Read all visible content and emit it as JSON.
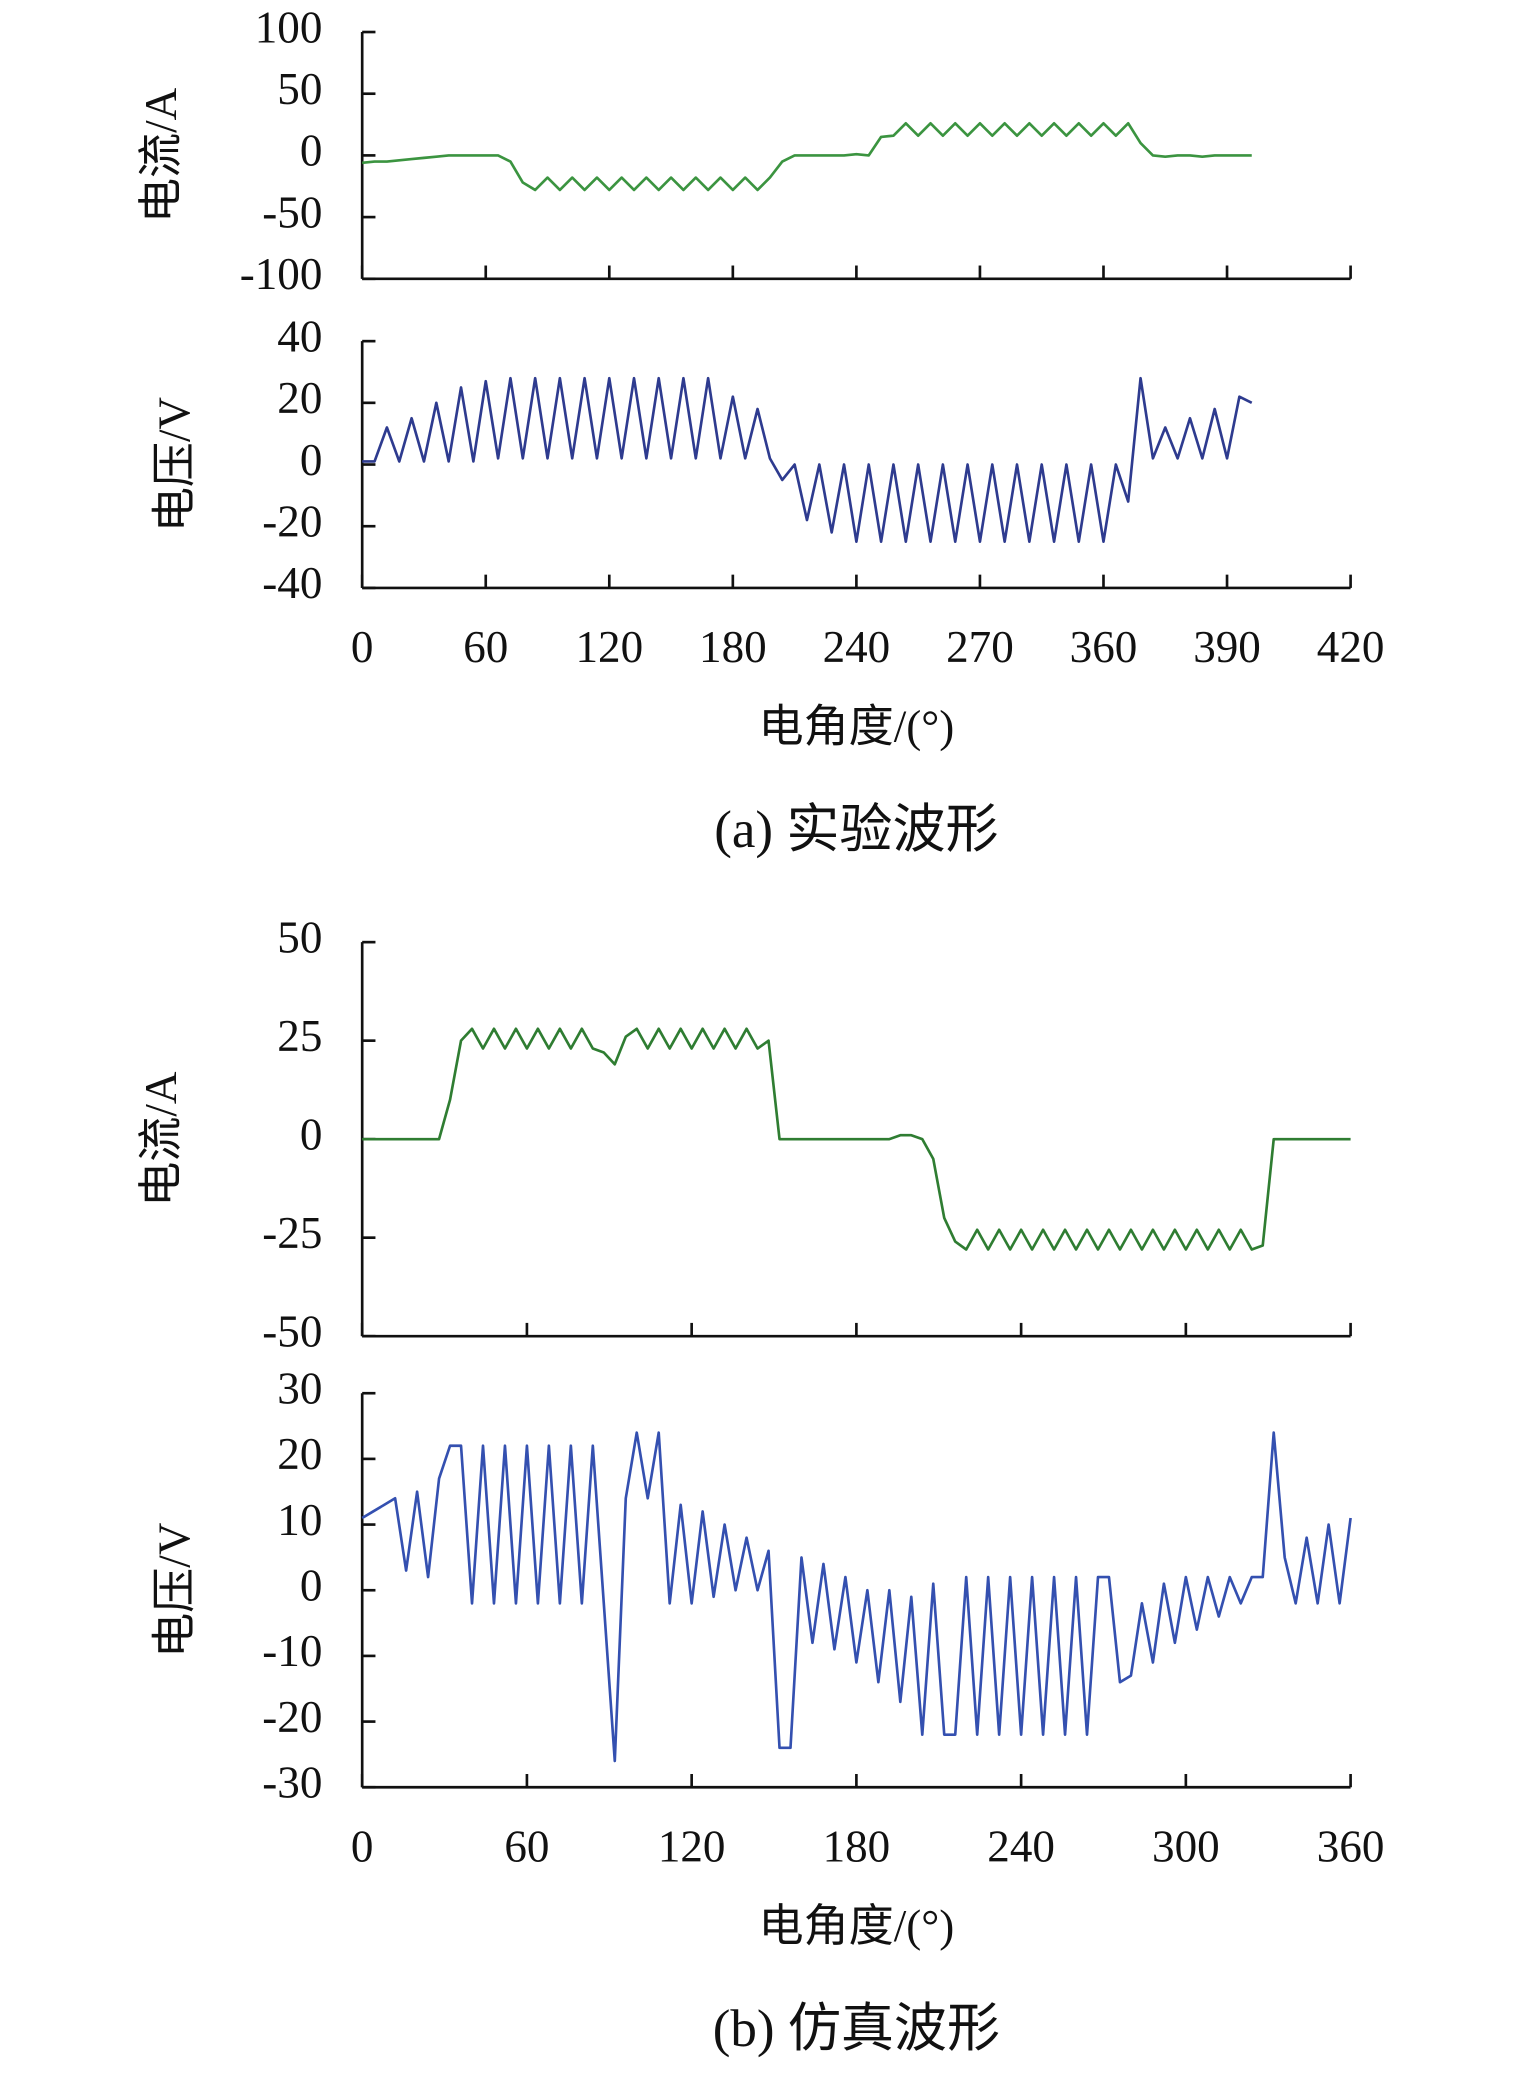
{
  "chart_data": [
    {
      "type": "line",
      "ylabel": "电流/A",
      "xlim": [
        0,
        8
      ],
      "xticks": [
        0,
        1,
        2,
        3,
        4,
        5,
        6,
        7,
        8
      ],
      "xticklabels": false,
      "ylim": [
        -100,
        100
      ],
      "yticks": [
        -100,
        -50,
        0,
        50,
        100
      ],
      "x": [
        0,
        0.1,
        0.2,
        0.3,
        0.4,
        0.5,
        0.6,
        0.7,
        0.8,
        0.9,
        1,
        1.1,
        1.2,
        1.3,
        1.4,
        1.5,
        1.6,
        1.7,
        1.8,
        1.9,
        2,
        2.1,
        2.2,
        2.3,
        2.4,
        2.5,
        2.6,
        2.7,
        2.8,
        2.9,
        3,
        3.1,
        3.2,
        3.3,
        3.4,
        3.5,
        3.6,
        3.7,
        3.8,
        3.9,
        4,
        4.1,
        4.2,
        4.3,
        4.4,
        4.5,
        4.6,
        4.7,
        4.8,
        4.9,
        5,
        5.1,
        5.2,
        5.3,
        5.4,
        5.5,
        5.6,
        5.7,
        5.8,
        5.9,
        6,
        6.1,
        6.2,
        6.3,
        6.4,
        6.5,
        6.6,
        6.7,
        6.8,
        6.9,
        7,
        7.1,
        7.2
      ],
      "series": [
        {
          "color": "#3b9440",
          "values": [
            -6,
            -5,
            -5,
            -4,
            -3,
            -2,
            -1,
            0,
            0,
            0,
            0,
            0,
            -5,
            -22,
            -28,
            -18,
            -28,
            -18,
            -28,
            -18,
            -28,
            -18,
            -28,
            -18,
            -28,
            -18,
            -28,
            -18,
            -28,
            -18,
            -28,
            -18,
            -28,
            -18,
            -5,
            0,
            0,
            0,
            0,
            0,
            1,
            0,
            15,
            16,
            26,
            16,
            26,
            16,
            26,
            16,
            26,
            16,
            26,
            16,
            26,
            16,
            26,
            16,
            26,
            16,
            26,
            16,
            26,
            10,
            0,
            -1,
            0,
            0,
            -1,
            0,
            0,
            0,
            0
          ]
        }
      ]
    },
    {
      "type": "line",
      "ylabel": "电压/V",
      "xlabel": "电角度/(°)",
      "caption": "(a) 实验波形",
      "xlim": [
        0,
        8
      ],
      "categories": [
        "0",
        "60",
        "120",
        "180",
        "240",
        "270",
        "360",
        "390",
        "420"
      ],
      "ylim": [
        -40,
        40
      ],
      "yticks": [
        -40,
        -20,
        0,
        20,
        40
      ],
      "x": [
        0,
        0.1,
        0.2,
        0.3,
        0.4,
        0.5,
        0.6,
        0.7,
        0.8,
        0.9,
        1,
        1.1,
        1.2,
        1.3,
        1.4,
        1.5,
        1.6,
        1.7,
        1.8,
        1.9,
        2,
        2.1,
        2.2,
        2.3,
        2.4,
        2.5,
        2.6,
        2.7,
        2.8,
        2.9,
        3,
        3.1,
        3.2,
        3.3,
        3.4,
        3.5,
        3.6,
        3.7,
        3.8,
        3.9,
        4,
        4.1,
        4.2,
        4.3,
        4.4,
        4.5,
        4.6,
        4.7,
        4.8,
        4.9,
        5,
        5.1,
        5.2,
        5.3,
        5.4,
        5.5,
        5.6,
        5.7,
        5.8,
        5.9,
        6,
        6.1,
        6.2,
        6.3,
        6.4,
        6.5,
        6.6,
        6.7,
        6.8,
        6.9,
        7,
        7.1,
        7.2
      ],
      "series": [
        {
          "color": "#2e3b8f",
          "values": [
            1,
            1,
            12,
            1,
            15,
            1,
            20,
            1,
            25,
            1,
            27,
            2,
            28,
            2,
            28,
            2,
            28,
            2,
            28,
            2,
            28,
            2,
            28,
            2,
            28,
            2,
            28,
            2,
            28,
            2,
            22,
            2,
            18,
            2,
            -5,
            0,
            -18,
            0,
            -22,
            0,
            -25,
            0,
            -25,
            0,
            -25,
            0,
            -25,
            0,
            -25,
            0,
            -25,
            0,
            -25,
            0,
            -25,
            0,
            -25,
            0,
            -25,
            0,
            -25,
            0,
            -12,
            28,
            2,
            12,
            2,
            15,
            2,
            18,
            2,
            22,
            20
          ]
        }
      ]
    },
    {
      "type": "line",
      "ylabel": "电流/A",
      "xlim": [
        0,
        360
      ],
      "xticks": [
        0,
        60,
        120,
        180,
        240,
        300,
        360
      ],
      "xticklabels": false,
      "ylim": [
        -50,
        50
      ],
      "yticks": [
        -50,
        -25,
        0,
        25,
        50
      ],
      "x": [
        0,
        4,
        8,
        12,
        16,
        20,
        24,
        28,
        32,
        36,
        40,
        44,
        48,
        52,
        56,
        60,
        64,
        68,
        72,
        76,
        80,
        84,
        88,
        92,
        96,
        100,
        104,
        108,
        112,
        116,
        120,
        124,
        128,
        132,
        136,
        140,
        144,
        148,
        152,
        156,
        160,
        164,
        168,
        172,
        176,
        180,
        184,
        188,
        192,
        196,
        200,
        204,
        208,
        212,
        216,
        220,
        224,
        228,
        232,
        236,
        240,
        244,
        248,
        252,
        256,
        260,
        264,
        268,
        272,
        276,
        280,
        284,
        288,
        292,
        296,
        300,
        304,
        308,
        312,
        316,
        320,
        324,
        328,
        332,
        336,
        340,
        344,
        348,
        352,
        356,
        360
      ],
      "series": [
        {
          "color": "#2f7d32",
          "values": [
            0,
            0,
            0,
            0,
            0,
            0,
            0,
            0,
            10,
            25,
            28,
            23,
            28,
            23,
            28,
            23,
            28,
            23,
            28,
            23,
            28,
            23,
            22,
            19,
            26,
            28,
            23,
            28,
            23,
            28,
            23,
            28,
            23,
            28,
            23,
            28,
            23,
            25,
            0,
            0,
            0,
            0,
            0,
            0,
            0,
            0,
            0,
            0,
            0,
            1,
            1,
            0,
            -5,
            -20,
            -26,
            -28,
            -23,
            -28,
            -23,
            -28,
            -23,
            -28,
            -23,
            -28,
            -23,
            -28,
            -23,
            -28,
            -23,
            -28,
            -23,
            -28,
            -23,
            -28,
            -23,
            -28,
            -23,
            -28,
            -23,
            -28,
            -23,
            -28,
            -27,
            0,
            0,
            0,
            0,
            0,
            0,
            0,
            0
          ]
        }
      ]
    },
    {
      "type": "line",
      "ylabel": "电压/V",
      "xlabel": "电角度/(°)",
      "caption": "(b) 仿真波形",
      "xlim": [
        0,
        360
      ],
      "xticks": [
        0,
        60,
        120,
        180,
        240,
        300,
        360
      ],
      "xticklabels": true,
      "ylim": [
        -30,
        30
      ],
      "yticks": [
        -30,
        -20,
        -10,
        0,
        10,
        20,
        30
      ],
      "x": [
        0,
        4,
        8,
        12,
        16,
        20,
        24,
        28,
        32,
        36,
        40,
        44,
        48,
        52,
        56,
        60,
        64,
        68,
        72,
        76,
        80,
        84,
        88,
        92,
        96,
        100,
        104,
        108,
        112,
        116,
        120,
        124,
        128,
        132,
        136,
        140,
        144,
        148,
        152,
        156,
        160,
        164,
        168,
        172,
        176,
        180,
        184,
        188,
        192,
        196,
        200,
        204,
        208,
        212,
        216,
        220,
        224,
        228,
        232,
        236,
        240,
        244,
        248,
        252,
        256,
        260,
        264,
        268,
        272,
        276,
        280,
        284,
        288,
        292,
        296,
        300,
        304,
        308,
        312,
        316,
        320,
        324,
        328,
        332,
        336,
        340,
        344,
        348,
        352,
        356,
        360
      ],
      "series": [
        {
          "color": "#3450b0",
          "values": [
            11,
            12,
            13,
            14,
            3,
            15,
            2,
            17,
            22,
            22,
            -2,
            22,
            -2,
            22,
            -2,
            22,
            -2,
            22,
            -2,
            22,
            -2,
            22,
            -2,
            -26,
            14,
            24,
            14,
            24,
            -2,
            13,
            -2,
            12,
            -1,
            10,
            0,
            8,
            0,
            6,
            -24,
            -24,
            5,
            -8,
            4,
            -9,
            2,
            -11,
            0,
            -14,
            0,
            -17,
            -1,
            -22,
            1,
            -22,
            -22,
            2,
            -22,
            2,
            -22,
            2,
            -22,
            2,
            -22,
            2,
            -22,
            2,
            -22,
            2,
            2,
            -14,
            -13,
            -2,
            -11,
            1,
            -8,
            2,
            -6,
            2,
            -4,
            2,
            -2,
            2,
            2,
            24,
            5,
            -2,
            8,
            -2,
            10,
            -2,
            11
          ]
        }
      ]
    }
  ]
}
